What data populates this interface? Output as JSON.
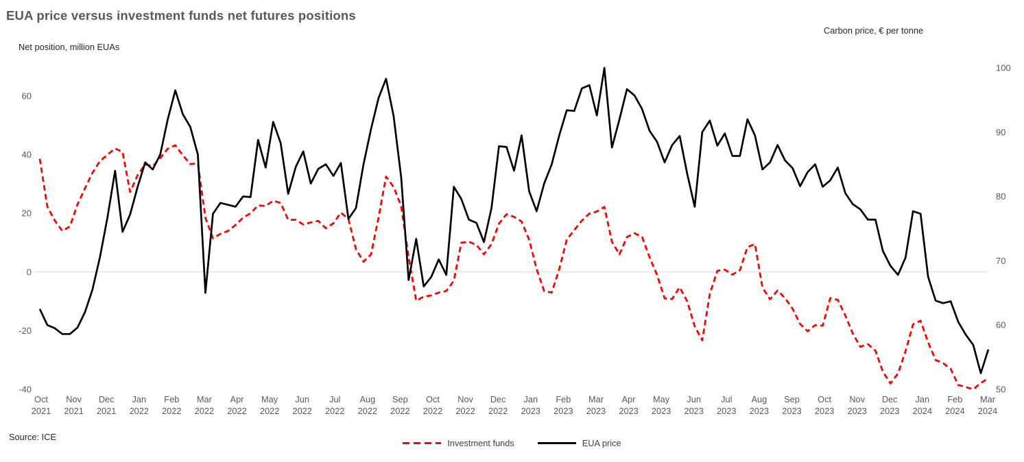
{
  "title": "EUA price versus investment funds net futures positions",
  "left_axis": {
    "label": "Net position, million EUAs",
    "ticks": [
      60,
      40,
      20,
      0,
      -20,
      -40
    ],
    "min": -40,
    "max": 60
  },
  "right_axis": {
    "label": "Carbon price, € per tonne",
    "ticks": [
      100,
      90,
      80,
      70,
      60,
      50
    ],
    "min": 50,
    "max": 100
  },
  "source": "Source: ICE",
  "colors": {
    "investment_funds": "#ff0000",
    "eua_price": "#000000",
    "gridline": "#d9d9d9",
    "title_text": "#595959",
    "axis_text": "#595959"
  },
  "legend": [
    {
      "label": "Investment funds",
      "color": "#ff0000",
      "dashed": true
    },
    {
      "label": "EUA price",
      "color": "#000000",
      "dashed": false
    }
  ],
  "chart_data": {
    "type": "line",
    "title": "EUA price versus investment funds net futures positions",
    "grid": "horizontal zero-line only",
    "legend_position": "bottom-center",
    "x_labels": [
      "Oct 2021",
      "Nov 2021",
      "Dec 2021",
      "Jan 2022",
      "Feb 2022",
      "Mar 2022",
      "Apr 2022",
      "May 2022",
      "Jun 2022",
      "Jul 2022",
      "Aug 2022",
      "Sep 2022",
      "Oct 2022",
      "Nov 2022",
      "Dec 2022",
      "Jan 2023",
      "Feb 2023",
      "Mar 2023",
      "Apr 2023",
      "May 2023",
      "Jun 2023",
      "Jul 2023",
      "Aug 2023",
      "Sep 2023",
      "Oct 2023",
      "Nov 2023",
      "Dec 2023",
      "Jan 2024",
      "Feb 2024",
      "Mar 2024"
    ],
    "x_note": "weekly observations, Oct 2021 to Mar 2024",
    "series": [
      {
        "name": "Investment funds",
        "slug": "investment-funds",
        "axis": "left",
        "unit": "million EUAs",
        "style": "dashed",
        "color": "#ff0000",
        "values": [
          38.6,
          22.3,
          17.5,
          14.0,
          15.5,
          23.0,
          28.5,
          33.8,
          37.8,
          40.0,
          42.1,
          40.9,
          27.3,
          33.0,
          36.7,
          36.0,
          38.8,
          42.0,
          43.2,
          39.8,
          36.8,
          37.0,
          18.5,
          11.5,
          13.0,
          14.0,
          16.0,
          18.5,
          20.0,
          22.7,
          22.5,
          24.3,
          23.5,
          17.8,
          17.8,
          16.2,
          16.9,
          17.4,
          14.9,
          16.6,
          20.2,
          18.1,
          7.8,
          3.5,
          6.0,
          18.5,
          32.5,
          29.0,
          22.5,
          5.0,
          -9.8,
          -8.4,
          -8.0,
          -7.0,
          -6.5,
          -3.0,
          10.0,
          10.3,
          9.3,
          6.0,
          9.5,
          16.5,
          19.7,
          18.8,
          17.2,
          11.0,
          1.0,
          -6.5,
          -7.0,
          1.0,
          11.0,
          14.3,
          17.5,
          19.9,
          20.6,
          22.2,
          10.3,
          6.0,
          11.9,
          13.2,
          12.0,
          5.0,
          -1.0,
          -9.0,
          -9.2,
          -5.2,
          -10.0,
          -18.5,
          -23.3,
          -7.5,
          0.4,
          0.8,
          -0.9,
          0.6,
          8.5,
          9.5,
          -5.3,
          -9.3,
          -6.3,
          -8.9,
          -12.5,
          -17.7,
          -20.2,
          -18.1,
          -18.3,
          -8.9,
          -9.5,
          -14.8,
          -21.0,
          -25.5,
          -24.6,
          -26.8,
          -34.0,
          -38.0,
          -34.6,
          -27.0,
          -17.9,
          -16.6,
          -24.0,
          -30.0,
          -31.1,
          -33.0,
          -38.5,
          -39.2,
          -40.0,
          -37.8,
          -36.3
        ]
      },
      {
        "name": "EUA price",
        "slug": "eua-price",
        "axis": "right",
        "unit": "€ per tonne",
        "style": "solid",
        "color": "#000000",
        "values": [
          62.5,
          60.0,
          59.5,
          58.6,
          58.6,
          59.6,
          62.0,
          65.5,
          70.6,
          76.8,
          84.0,
          74.5,
          77.2,
          81.5,
          85.3,
          84.2,
          86.5,
          92.0,
          96.5,
          92.8,
          90.8,
          86.5,
          65.0,
          77.3,
          79.0,
          78.7,
          78.4,
          80.0,
          79.9,
          88.8,
          84.5,
          91.6,
          88.3,
          80.4,
          84.6,
          87.0,
          82.0,
          84.3,
          85.0,
          83.2,
          85.2,
          76.5,
          78.2,
          85.0,
          90.5,
          95.3,
          98.3,
          92.5,
          83.0,
          67.0,
          73.4,
          66.0,
          67.5,
          70.2,
          67.8,
          81.5,
          79.6,
          76.4,
          75.9,
          72.9,
          78.2,
          87.8,
          87.7,
          84.0,
          89.5,
          80.8,
          77.7,
          82.0,
          85.0,
          89.5,
          93.4,
          93.3,
          96.8,
          97.3,
          92.6,
          100.0,
          87.6,
          92.0,
          96.7,
          95.7,
          93.6,
          90.2,
          88.5,
          85.3,
          88.0,
          89.4,
          83.5,
          78.4,
          90.0,
          91.8,
          87.9,
          89.8,
          86.3,
          86.3,
          92.0,
          89.5,
          84.2,
          85.3,
          88.0,
          85.6,
          84.4,
          81.6,
          83.8,
          85.0,
          81.5,
          82.5,
          84.5,
          80.5,
          78.8,
          78.0,
          76.4,
          76.4,
          71.5,
          69.2,
          67.8,
          70.5,
          77.7,
          77.3,
          67.5,
          63.8,
          63.4,
          63.7,
          60.5,
          58.5,
          56.9,
          52.5,
          56.2
        ]
      }
    ]
  }
}
